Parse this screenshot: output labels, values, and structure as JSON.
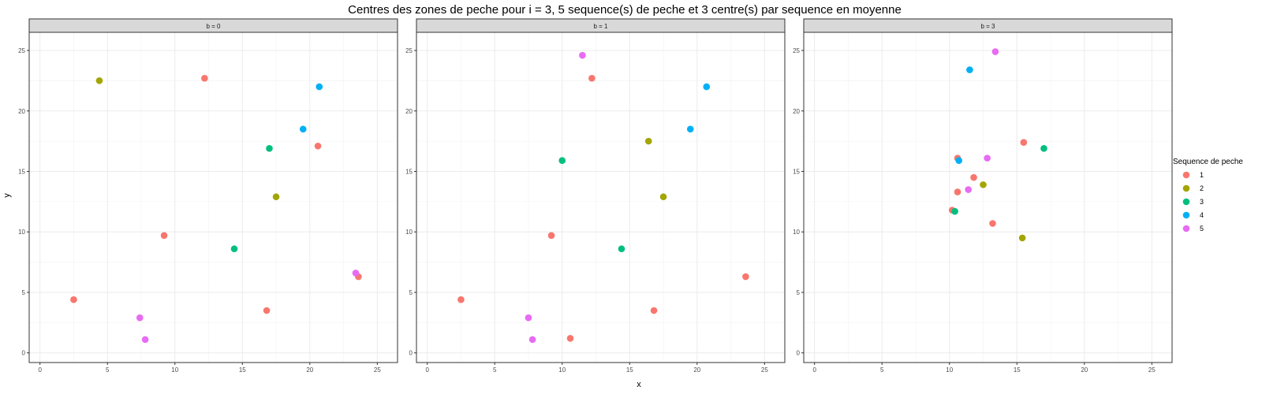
{
  "chart_data": {
    "type": "scatter",
    "title": "Centres des zones de peche pour i = 3, 5 sequence(s) de peche et 3 centre(s) par sequence en moyenne",
    "xlabel": "x",
    "ylabel": "y",
    "xlim": [
      -0.8,
      26.5
    ],
    "ylim": [
      -0.8,
      26.5
    ],
    "x_ticks": [
      0,
      5,
      10,
      15,
      20,
      25
    ],
    "y_ticks": [
      0,
      5,
      10,
      15,
      20,
      25
    ],
    "grid": true,
    "legend": {
      "title": "Sequence de peche",
      "position": "right",
      "entries": [
        {
          "label": "1",
          "color": "#F8766D"
        },
        {
          "label": "2",
          "color": "#A3A500"
        },
        {
          "label": "3",
          "color": "#00BF7D"
        },
        {
          "label": "4",
          "color": "#00B0F6"
        },
        {
          "label": "5",
          "color": "#E76BF3"
        }
      ]
    },
    "facets": [
      {
        "label": "b = 0",
        "series": [
          {
            "name": "1",
            "points": [
              [
                2.5,
                4.4
              ],
              [
                9.2,
                9.7
              ],
              [
                12.2,
                22.7
              ],
              [
                16.8,
                3.5
              ],
              [
                20.6,
                17.1
              ],
              [
                23.6,
                6.3
              ]
            ]
          },
          {
            "name": "2",
            "points": [
              [
                4.4,
                22.5
              ],
              [
                17.5,
                12.9
              ]
            ]
          },
          {
            "name": "3",
            "points": [
              [
                14.4,
                8.6
              ],
              [
                17.0,
                16.9
              ]
            ]
          },
          {
            "name": "4",
            "points": [
              [
                19.5,
                18.5
              ],
              [
                20.7,
                22.0
              ]
            ]
          },
          {
            "name": "5",
            "points": [
              [
                7.4,
                2.9
              ],
              [
                7.8,
                1.1
              ],
              [
                23.4,
                6.6
              ]
            ]
          }
        ]
      },
      {
        "label": "b = 1",
        "series": [
          {
            "name": "1",
            "points": [
              [
                2.5,
                4.4
              ],
              [
                9.2,
                9.7
              ],
              [
                10.6,
                1.2
              ],
              [
                12.2,
                22.7
              ],
              [
                16.8,
                3.5
              ],
              [
                23.6,
                6.3
              ]
            ]
          },
          {
            "name": "2",
            "points": [
              [
                16.4,
                17.5
              ],
              [
                17.5,
                12.9
              ]
            ]
          },
          {
            "name": "3",
            "points": [
              [
                10.0,
                15.9
              ],
              [
                14.4,
                8.6
              ]
            ]
          },
          {
            "name": "4",
            "points": [
              [
                19.5,
                18.5
              ],
              [
                20.7,
                22.0
              ]
            ]
          },
          {
            "name": "5",
            "points": [
              [
                7.5,
                2.9
              ],
              [
                7.8,
                1.1
              ],
              [
                11.5,
                24.6
              ]
            ]
          }
        ]
      },
      {
        "label": "b = 3",
        "series": [
          {
            "name": "1",
            "points": [
              [
                10.2,
                11.8
              ],
              [
                10.6,
                13.3
              ],
              [
                10.6,
                16.1
              ],
              [
                11.8,
                14.5
              ],
              [
                13.2,
                10.7
              ],
              [
                15.5,
                17.4
              ]
            ]
          },
          {
            "name": "2",
            "points": [
              [
                12.5,
                13.9
              ],
              [
                15.4,
                9.5
              ]
            ]
          },
          {
            "name": "3",
            "points": [
              [
                10.4,
                11.7
              ],
              [
                17.0,
                16.9
              ]
            ]
          },
          {
            "name": "4",
            "points": [
              [
                10.7,
                15.9
              ],
              [
                11.5,
                23.4
              ]
            ]
          },
          {
            "name": "5",
            "points": [
              [
                11.4,
                13.5
              ],
              [
                12.8,
                16.1
              ],
              [
                13.4,
                24.9
              ]
            ]
          }
        ]
      }
    ]
  }
}
